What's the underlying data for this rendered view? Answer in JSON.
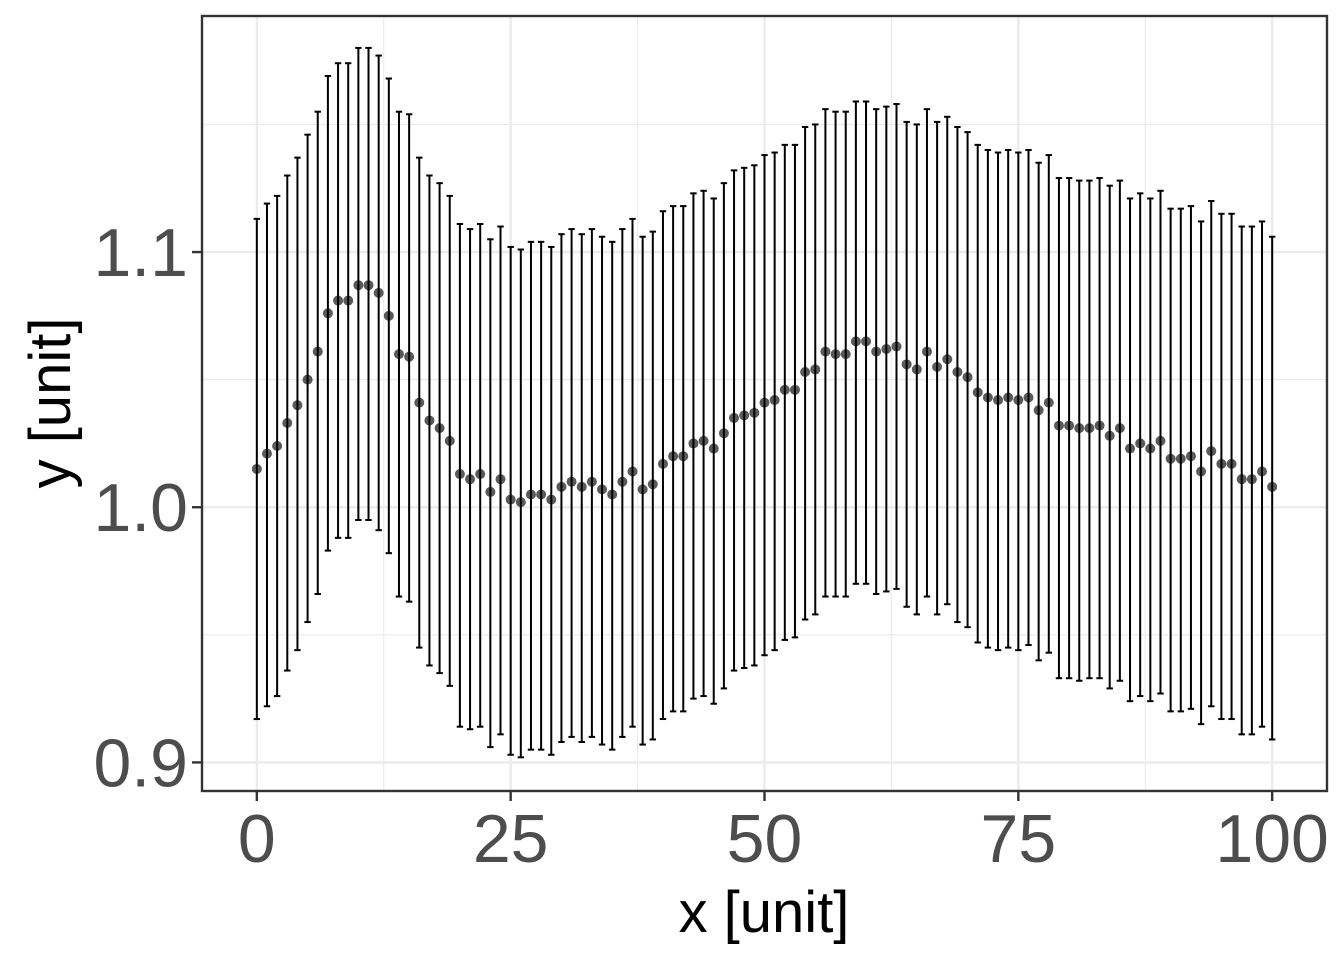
{
  "chart_data": {
    "type": "scatter",
    "xlabel": "x [unit]",
    "ylabel": "y [unit]",
    "xlim": [
      -5.4,
      105.4
    ],
    "ylim": [
      0.8888,
      1.1925
    ],
    "xticks": [
      0,
      25,
      50,
      75,
      100
    ],
    "xtick_labels": [
      "0",
      "25",
      "50",
      "75",
      "100"
    ],
    "yticks": [
      0.9,
      1.0,
      1.1
    ],
    "ytick_labels": [
      "0.9",
      "1.0",
      "1.1"
    ],
    "grid": true,
    "legend": "none",
    "x": [
      0,
      1,
      2,
      3,
      4,
      5,
      6,
      7,
      8,
      9,
      10,
      11,
      12,
      13,
      14,
      15,
      16,
      17,
      18,
      19,
      20,
      21,
      22,
      23,
      24,
      25,
      26,
      27,
      28,
      29,
      30,
      31,
      32,
      33,
      34,
      35,
      36,
      37,
      38,
      39,
      40,
      41,
      42,
      43,
      44,
      45,
      46,
      47,
      48,
      49,
      50,
      51,
      52,
      53,
      54,
      55,
      56,
      57,
      58,
      59,
      60,
      61,
      62,
      63,
      64,
      65,
      66,
      67,
      68,
      69,
      70,
      71,
      72,
      73,
      74,
      75,
      76,
      77,
      78,
      79,
      80,
      81,
      82,
      83,
      84,
      85,
      86,
      87,
      88,
      89,
      90,
      91,
      92,
      93,
      94,
      95,
      96,
      97,
      98,
      99,
      100
    ],
    "y": [
      1.015,
      1.021,
      1.024,
      1.033,
      1.04,
      1.05,
      1.061,
      1.076,
      1.081,
      1.081,
      1.087,
      1.087,
      1.084,
      1.075,
      1.06,
      1.059,
      1.041,
      1.034,
      1.031,
      1.026,
      1.013,
      1.011,
      1.013,
      1.006,
      1.011,
      1.003,
      1.002,
      1.005,
      1.005,
      1.003,
      1.008,
      1.01,
      1.008,
      1.01,
      1.007,
      1.005,
      1.01,
      1.014,
      1.007,
      1.009,
      1.017,
      1.02,
      1.02,
      1.025,
      1.026,
      1.023,
      1.029,
      1.035,
      1.036,
      1.037,
      1.041,
      1.042,
      1.046,
      1.046,
      1.053,
      1.054,
      1.061,
      1.06,
      1.06,
      1.065,
      1.065,
      1.061,
      1.062,
      1.063,
      1.056,
      1.054,
      1.061,
      1.055,
      1.058,
      1.053,
      1.051,
      1.045,
      1.043,
      1.042,
      1.043,
      1.042,
      1.043,
      1.038,
      1.041,
      1.032,
      1.032,
      1.031,
      1.031,
      1.032,
      1.028,
      1.031,
      1.023,
      1.025,
      1.023,
      1.026,
      1.019,
      1.019,
      1.02,
      1.014,
      1.022,
      1.017,
      1.017,
      1.011,
      1.011,
      1.014,
      1.008
    ],
    "y_lower": [
      0.917,
      0.922,
      0.926,
      0.936,
      0.944,
      0.955,
      0.966,
      0.983,
      0.988,
      0.988,
      0.995,
      0.995,
      0.991,
      0.982,
      0.965,
      0.963,
      0.945,
      0.938,
      0.935,
      0.93,
      0.914,
      0.913,
      0.914,
      0.906,
      0.911,
      0.903,
      0.902,
      0.905,
      0.905,
      0.903,
      0.908,
      0.91,
      0.908,
      0.91,
      0.907,
      0.905,
      0.91,
      0.914,
      0.907,
      0.909,
      0.917,
      0.92,
      0.92,
      0.925,
      0.926,
      0.923,
      0.929,
      0.936,
      0.937,
      0.938,
      0.942,
      0.944,
      0.948,
      0.949,
      0.956,
      0.958,
      0.965,
      0.965,
      0.965,
      0.97,
      0.97,
      0.966,
      0.967,
      0.968,
      0.961,
      0.958,
      0.965,
      0.958,
      0.962,
      0.955,
      0.953,
      0.947,
      0.945,
      0.944,
      0.945,
      0.944,
      0.946,
      0.94,
      0.943,
      0.933,
      0.933,
      0.932,
      0.933,
      0.933,
      0.929,
      0.932,
      0.924,
      0.926,
      0.924,
      0.927,
      0.92,
      0.92,
      0.921,
      0.915,
      0.922,
      0.917,
      0.917,
      0.911,
      0.911,
      0.914,
      0.909
    ],
    "y_upper": [
      1.113,
      1.119,
      1.122,
      1.13,
      1.137,
      1.146,
      1.155,
      1.169,
      1.174,
      1.174,
      1.18,
      1.18,
      1.177,
      1.168,
      1.155,
      1.154,
      1.137,
      1.13,
      1.127,
      1.122,
      1.111,
      1.109,
      1.111,
      1.105,
      1.11,
      1.102,
      1.101,
      1.104,
      1.104,
      1.102,
      1.107,
      1.109,
      1.107,
      1.109,
      1.106,
      1.104,
      1.109,
      1.113,
      1.106,
      1.108,
      1.116,
      1.118,
      1.118,
      1.123,
      1.124,
      1.121,
      1.127,
      1.132,
      1.133,
      1.134,
      1.138,
      1.139,
      1.142,
      1.142,
      1.149,
      1.15,
      1.156,
      1.155,
      1.155,
      1.159,
      1.159,
      1.156,
      1.157,
      1.158,
      1.151,
      1.15,
      1.156,
      1.151,
      1.153,
      1.149,
      1.147,
      1.142,
      1.14,
      1.139,
      1.14,
      1.139,
      1.14,
      1.135,
      1.138,
      1.129,
      1.129,
      1.128,
      1.128,
      1.129,
      1.126,
      1.128,
      1.121,
      1.123,
      1.121,
      1.124,
      1.117,
      1.117,
      1.118,
      1.112,
      1.12,
      1.115,
      1.115,
      1.11,
      1.11,
      1.112,
      1.106
    ]
  }
}
